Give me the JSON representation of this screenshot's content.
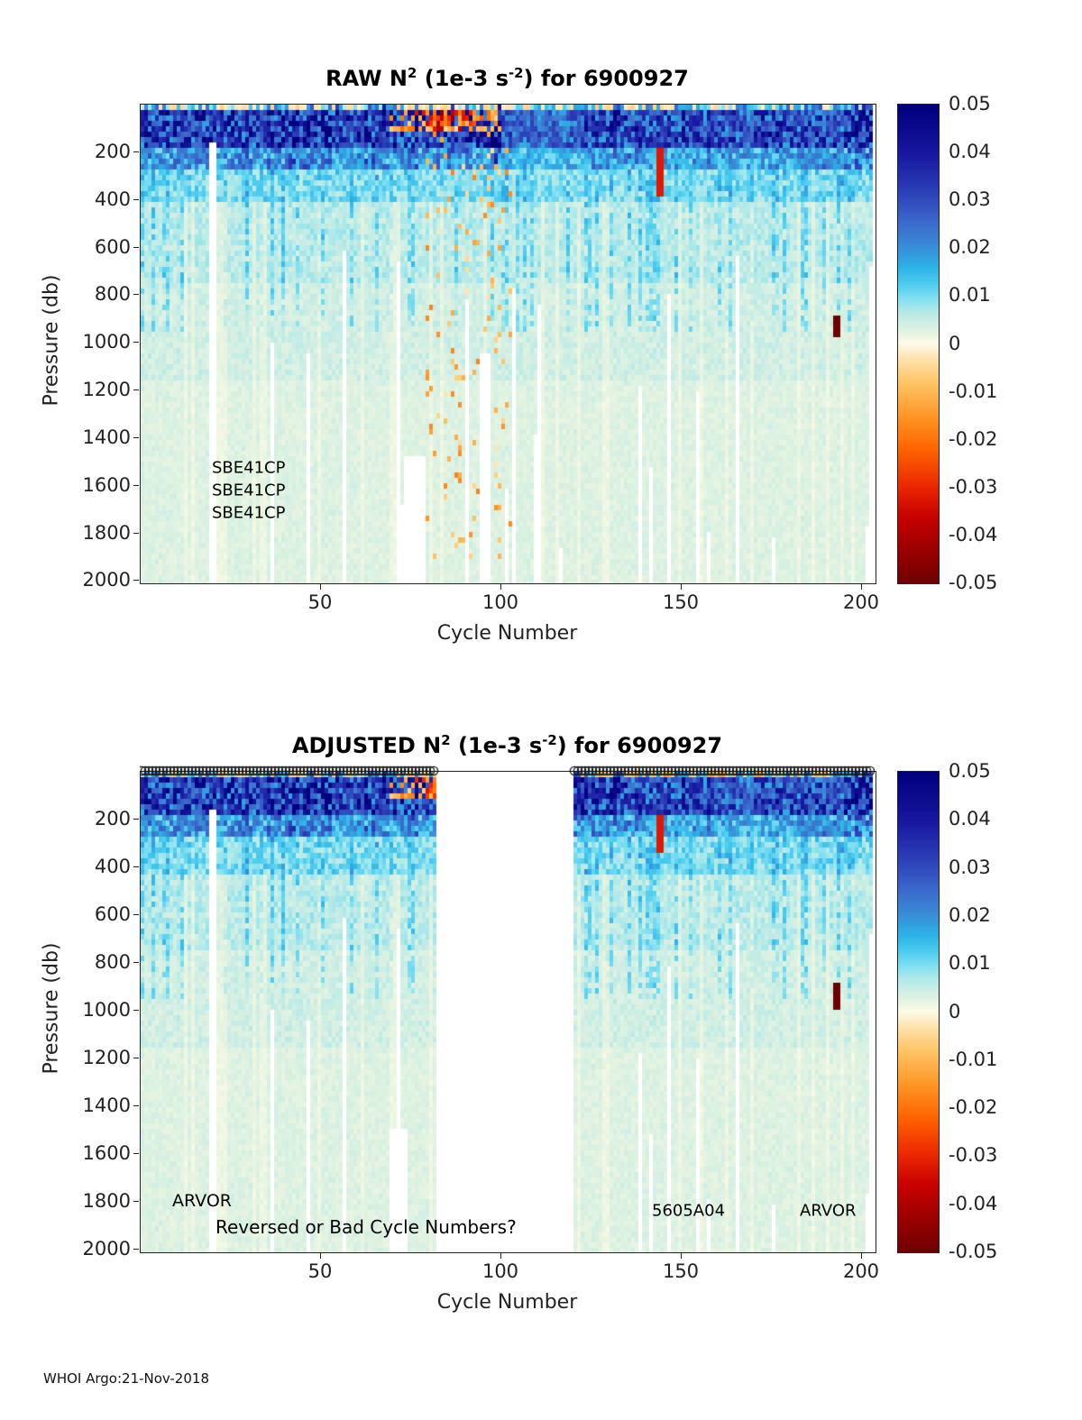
{
  "figure": {
    "background": "#ffffff",
    "footer": "WHOI Argo:21-Nov-2018"
  },
  "colormap": {
    "min": -0.05,
    "max": 0.05,
    "stops": [
      {
        "v": -0.05,
        "c": "#6e0000"
      },
      {
        "v": -0.043,
        "c": "#9b0000"
      },
      {
        "v": -0.036,
        "c": "#c80000"
      },
      {
        "v": -0.029,
        "c": "#ef2c00"
      },
      {
        "v": -0.022,
        "c": "#ff6300"
      },
      {
        "v": -0.015,
        "c": "#ff9626"
      },
      {
        "v": -0.008,
        "c": "#ffc465"
      },
      {
        "v": -0.003,
        "c": "#ffe3ae"
      },
      {
        "v": -0.0005,
        "c": "#fcf6dd"
      },
      {
        "v": 0.0005,
        "c": "#fbfbe8"
      },
      {
        "v": 0.0018,
        "c": "#e9f5e1"
      },
      {
        "v": 0.0042,
        "c": "#d3efe3"
      },
      {
        "v": 0.007,
        "c": "#b0e9e9"
      },
      {
        "v": 0.0095,
        "c": "#84e0f0"
      },
      {
        "v": 0.0125,
        "c": "#4fcdf0"
      },
      {
        "v": 0.016,
        "c": "#2cb3e6"
      },
      {
        "v": 0.0205,
        "c": "#398cd8"
      },
      {
        "v": 0.026,
        "c": "#3a66ca"
      },
      {
        "v": 0.032,
        "c": "#2c3fb8"
      },
      {
        "v": 0.04,
        "c": "#1717a0"
      },
      {
        "v": 0.05,
        "c": "#00007d"
      }
    ]
  },
  "bands": [
    {
      "p": [
        0,
        28
      ],
      "base": 0.002,
      "amp": 0.028,
      "negProb": 0.38,
      "negAmp": 0.006
    },
    {
      "p": [
        28,
        190
      ],
      "base": 0.014,
      "amp": 0.034
    },
    {
      "p": [
        190,
        280
      ],
      "base": 0.008,
      "amp": 0.02
    },
    {
      "p": [
        280,
        420
      ],
      "base": 0.005,
      "amp": 0.009
    },
    {
      "p": [
        420,
        750
      ],
      "base": 0.0032,
      "amp": 0.0055
    },
    {
      "p": [
        750,
        1150
      ],
      "base": 0.0024,
      "amp": 0.0035
    },
    {
      "p": [
        1150,
        2010
      ],
      "base": 0.0017,
      "amp": 0.0026
    }
  ],
  "chart_data": [
    {
      "type": "heatmap",
      "id": "raw",
      "title": {
        "prefix": "RAW N",
        "sup1": "2",
        "mid": " (1e-3 s",
        "sup2": "-2",
        "suffix": ") for 6900927"
      },
      "xlabel": "Cycle Number",
      "ylabel": "Pressure (db)",
      "x_range": [
        1,
        203
      ],
      "x_ticks": [
        50,
        100,
        150,
        200
      ],
      "y_range": [
        0,
        2010
      ],
      "y_ticks": [
        200,
        400,
        600,
        800,
        1000,
        1200,
        1400,
        1600,
        1800,
        2000
      ],
      "y_axis_reversed": true,
      "colorbar_ticks": [
        "0.05",
        "0.04",
        "0.03",
        "0.02",
        "0.01",
        "0",
        "-0.01",
        "-0.02",
        "-0.03",
        "-0.04",
        "-0.05"
      ],
      "annotations": [
        {
          "text": "SBE41CP",
          "cycle": 20,
          "pressure": 1530,
          "size": 18
        },
        {
          "text": "SBE41CP",
          "cycle": 20,
          "pressure": 1625,
          "size": 18
        },
        {
          "text": "SBE41CP",
          "cycle": 20,
          "pressure": 1720,
          "size": 18
        }
      ],
      "cycle_blocks": [
        [
          1,
          203
        ]
      ],
      "marker_row": false,
      "boost_ranges": [
        {
          "cycles": [
            30,
            60
          ],
          "factor": 1.12
        },
        {
          "cycles": [
            63,
            100
          ],
          "factor": 1.3
        },
        {
          "cycles": [
            183,
            203
          ],
          "factor": 1.25
        }
      ],
      "pale_ranges": [
        {
          "cycles": [
            1,
            12
          ],
          "factor": 0.85
        },
        {
          "cycles": [
            101,
            123
          ],
          "factor": 0.62
        }
      ],
      "anomalies": [
        {
          "kind": "surface_negative_blob",
          "cycles": [
            70,
            100
          ],
          "pressure": [
            12,
            110
          ],
          "value": [
            -0.05,
            -0.01
          ]
        },
        {
          "kind": "speckle_negative",
          "cycles": [
            80,
            104
          ],
          "pressure": [
            60,
            1900
          ],
          "prob": 0.07,
          "value": [
            -0.018,
            -0.002
          ]
        },
        {
          "kind": "dash",
          "cycles": [
            144,
            145
          ],
          "pressure": [
            190,
            380
          ],
          "value": -0.032
        },
        {
          "kind": "dash",
          "cycles": [
            193,
            194
          ],
          "pressure": [
            890,
            985
          ],
          "value": -0.05
        }
      ],
      "missing": [
        {
          "cycles": [
            20,
            21
          ],
          "pressure": [
            150,
            2010
          ]
        },
        {
          "cycles": [
            74,
            79
          ],
          "pressure": [
            1480,
            2010
          ]
        },
        {
          "cycles": [
            95,
            97
          ],
          "pressure": [
            1050,
            2010
          ]
        }
      ]
    },
    {
      "type": "heatmap",
      "id": "adjusted",
      "title": {
        "prefix": "ADJUSTED N",
        "sup1": "2",
        "mid": " (1e-3 s",
        "sup2": "-2",
        "suffix": ") for 6900927"
      },
      "xlabel": "Cycle Number",
      "ylabel": "Pressure (db)",
      "x_range": [
        1,
        203
      ],
      "x_ticks": [
        50,
        100,
        150,
        200
      ],
      "y_range": [
        0,
        2010
      ],
      "y_ticks": [
        200,
        400,
        600,
        800,
        1000,
        1200,
        1400,
        1600,
        1800,
        2000
      ],
      "y_axis_reversed": true,
      "colorbar_ticks": [
        "0.05",
        "0.04",
        "0.03",
        "0.02",
        "0.01",
        "0",
        "-0.01",
        "-0.02",
        "-0.03",
        "-0.04",
        "-0.05"
      ],
      "annotations": [
        {
          "text": "ARVOR",
          "cycle": 9,
          "pressure": 1800,
          "size": 19
        },
        {
          "text": "Reversed or Bad Cycle Numbers?",
          "cycle": 21,
          "pressure": 1910,
          "size": 20
        },
        {
          "text": "5605A04",
          "cycle": 142,
          "pressure": 1840,
          "size": 18
        },
        {
          "text": "ARVOR",
          "cycle": 183,
          "pressure": 1840,
          "size": 18
        }
      ],
      "cycle_blocks": [
        [
          1,
          82
        ],
        [
          121,
          203
        ]
      ],
      "marker_row": true,
      "boost_ranges": [
        {
          "cycles": [
            30,
            60
          ],
          "factor": 1.12
        },
        {
          "cycles": [
            63,
            82
          ],
          "factor": 1.25
        },
        {
          "cycles": [
            121,
            135
          ],
          "factor": 1.1
        },
        {
          "cycles": [
            183,
            203
          ],
          "factor": 1.25
        }
      ],
      "pale_ranges": [
        {
          "cycles": [
            1,
            12
          ],
          "factor": 0.85
        },
        {
          "cycles": [
            160,
            180
          ],
          "factor": 0.88
        }
      ],
      "anomalies": [
        {
          "kind": "surface_negative_blob",
          "cycles": [
            70,
            100
          ],
          "pressure": [
            12,
            110
          ],
          "value": [
            -0.045,
            -0.01
          ]
        },
        {
          "kind": "speckle_negative",
          "cycles": [
            121,
            203
          ],
          "pressure": [
            0,
            30
          ],
          "prob": 0.25,
          "value": [
            -0.012,
            -0.002
          ]
        },
        {
          "kind": "dash",
          "cycles": [
            144,
            145
          ],
          "pressure": [
            190,
            330
          ],
          "value": -0.032
        },
        {
          "kind": "dash",
          "cycles": [
            193,
            194
          ],
          "pressure": [
            890,
            985
          ],
          "value": -0.05
        }
      ],
      "missing": [
        {
          "cycles": [
            20,
            21
          ],
          "pressure": [
            150,
            2010
          ]
        },
        {
          "cycles": [
            70,
            74
          ],
          "pressure": [
            1500,
            2010
          ]
        }
      ]
    }
  ]
}
